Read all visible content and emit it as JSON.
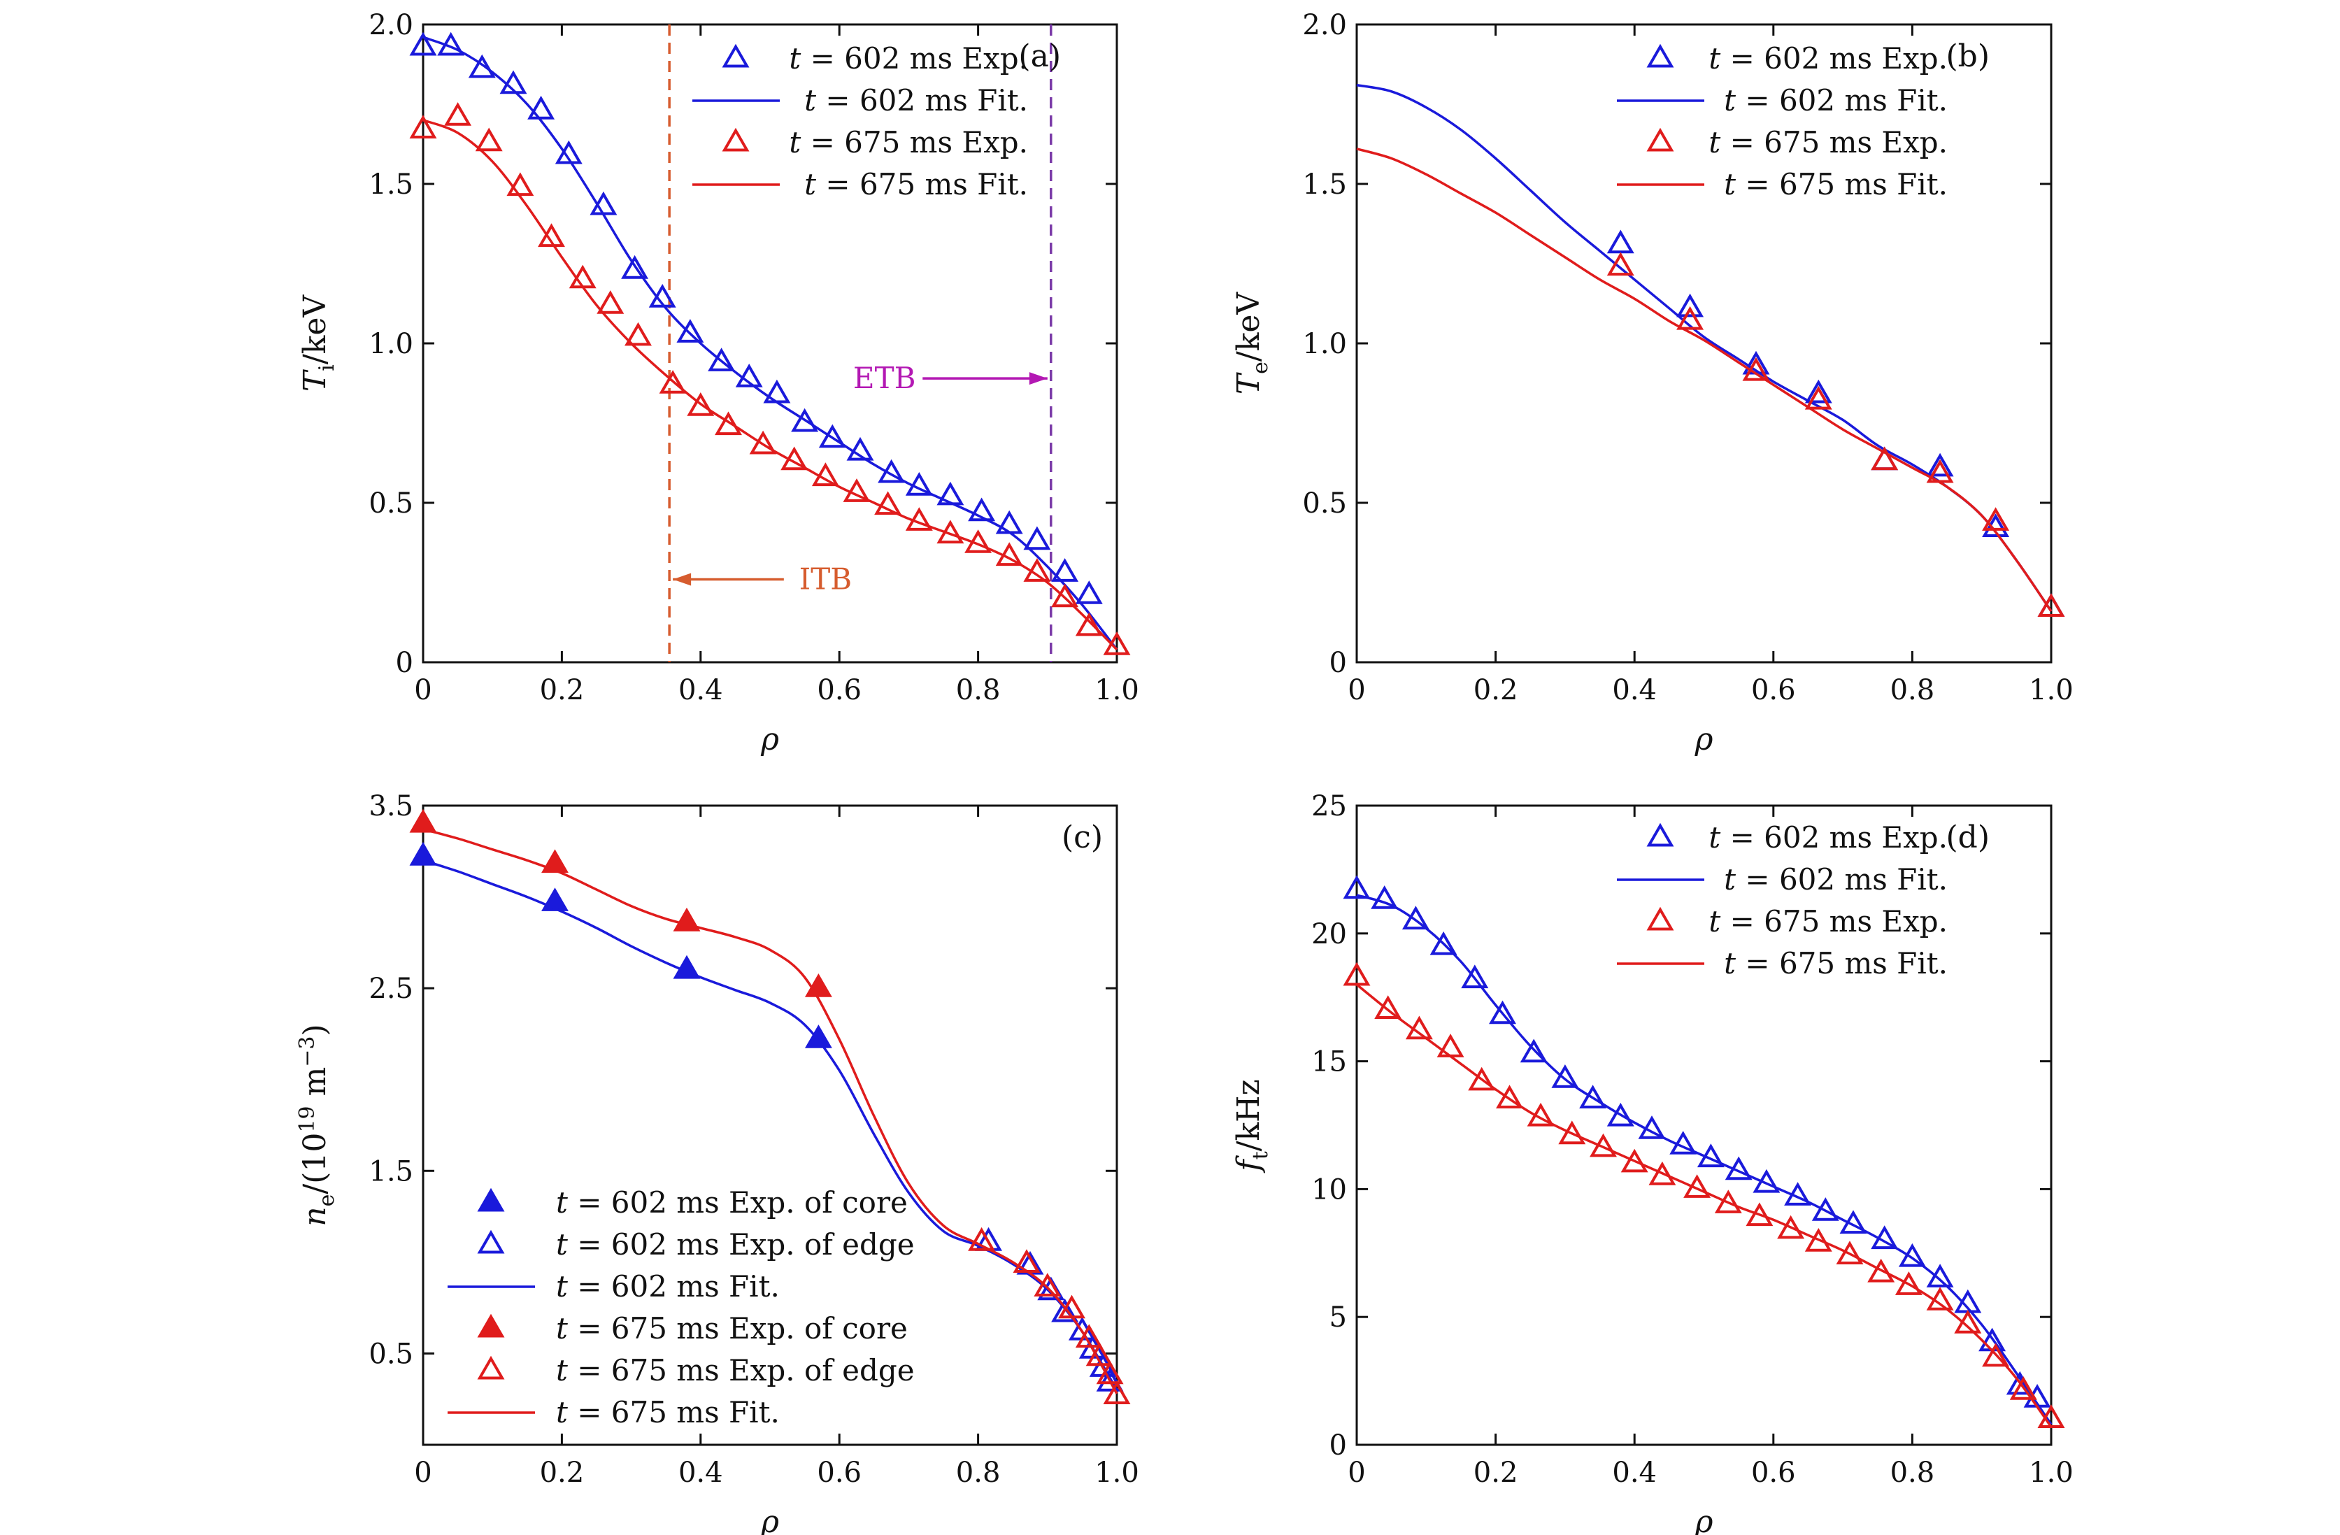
{
  "chart_data": [
    {
      "panel": "(a)",
      "type": "line",
      "xlabel": "ρ",
      "ylabel_main": "T",
      "ylabel_sub": "i",
      "ylabel_rest": "/keV",
      "xlim": [
        0,
        1.0
      ],
      "ylim": [
        0,
        2.0
      ],
      "xticks": [
        0,
        0.2,
        0.4,
        0.6,
        0.8,
        1.0
      ],
      "xtick_labels": [
        "0",
        "0.2",
        "0.4",
        "0.6",
        "0.8",
        "1.0"
      ],
      "yticks": [
        0,
        0.5,
        1.0,
        1.5,
        2.0
      ],
      "ytick_labels": [
        "0",
        "0.5",
        "1.0",
        "1.5",
        "2.0"
      ],
      "legend_position": "top-right",
      "series": [
        {
          "name": "t = 602 ms Exp.",
          "legend": [
            "t",
            " = 602 ms Exp."
          ],
          "kind": "open",
          "color": "#1a1adb",
          "x": [
            0,
            0.04,
            0.085,
            0.13,
            0.17,
            0.21,
            0.26,
            0.305,
            0.345,
            0.385,
            0.43,
            0.47,
            0.51,
            0.55,
            0.59,
            0.63,
            0.675,
            0.715,
            0.76,
            0.805,
            0.845,
            0.885,
            0.925,
            0.96
          ],
          "y": [
            1.93,
            1.93,
            1.86,
            1.81,
            1.73,
            1.59,
            1.43,
            1.23,
            1.14,
            1.03,
            0.94,
            0.89,
            0.84,
            0.75,
            0.7,
            0.66,
            0.59,
            0.55,
            0.52,
            0.47,
            0.43,
            0.38,
            0.28,
            0.21
          ]
        },
        {
          "name": "t = 602 ms Fit.",
          "legend": [
            "t",
            " = 602 ms Fit."
          ],
          "kind": "line",
          "color": "#1a1adb",
          "x": [
            0,
            0.05,
            0.1,
            0.15,
            0.2,
            0.25,
            0.3,
            0.35,
            0.4,
            0.45,
            0.5,
            0.55,
            0.6,
            0.65,
            0.7,
            0.75,
            0.8,
            0.85,
            0.9,
            0.95,
            1.0
          ],
          "y": [
            1.96,
            1.92,
            1.85,
            1.75,
            1.61,
            1.44,
            1.26,
            1.11,
            1.0,
            0.91,
            0.83,
            0.76,
            0.69,
            0.62,
            0.56,
            0.51,
            0.46,
            0.4,
            0.3,
            0.18,
            0.04
          ]
        },
        {
          "name": "t = 675 ms Exp.",
          "legend": [
            "t",
            " = 675 ms Exp."
          ],
          "kind": "open",
          "color": "#e01c1c",
          "x": [
            0,
            0.05,
            0.095,
            0.14,
            0.185,
            0.23,
            0.27,
            0.31,
            0.36,
            0.4,
            0.44,
            0.49,
            0.535,
            0.58,
            0.625,
            0.67,
            0.715,
            0.76,
            0.8,
            0.845,
            0.885,
            0.925,
            0.96,
            1.0
          ],
          "y": [
            1.67,
            1.71,
            1.63,
            1.49,
            1.33,
            1.2,
            1.12,
            1.02,
            0.87,
            0.8,
            0.74,
            0.68,
            0.63,
            0.58,
            0.53,
            0.49,
            0.44,
            0.4,
            0.37,
            0.33,
            0.28,
            0.2,
            0.11,
            0.05
          ]
        },
        {
          "name": "t = 675 ms Fit.",
          "legend": [
            "t",
            " = 675 ms Fit."
          ],
          "kind": "line",
          "color": "#e01c1c",
          "x": [
            0,
            0.05,
            0.1,
            0.15,
            0.2,
            0.25,
            0.3,
            0.35,
            0.4,
            0.45,
            0.5,
            0.55,
            0.6,
            0.65,
            0.7,
            0.75,
            0.8,
            0.85,
            0.9,
            0.95,
            1.0
          ],
          "y": [
            1.7,
            1.66,
            1.57,
            1.43,
            1.27,
            1.12,
            1.0,
            0.9,
            0.81,
            0.74,
            0.67,
            0.61,
            0.55,
            0.5,
            0.45,
            0.41,
            0.37,
            0.32,
            0.25,
            0.15,
            0.04
          ]
        }
      ],
      "vlines": [
        {
          "x": 0.355,
          "color": "#d65c2e",
          "label": "ITB"
        },
        {
          "x": 0.905,
          "color": "#7a3aa8",
          "label": "ETB"
        }
      ],
      "annotations": [
        {
          "text": "ITB",
          "color": "#d65c2e",
          "text_x": 0.58,
          "text_y": 0.26,
          "arrow_from": [
            0.52,
            0.26
          ],
          "arrow_to": [
            0.36,
            0.26
          ]
        },
        {
          "text": "ETB",
          "color": "#b318b3",
          "text_x": 0.665,
          "text_y": 0.89,
          "arrow_from": [
            0.72,
            0.89
          ],
          "arrow_to": [
            0.9,
            0.89
          ]
        }
      ]
    },
    {
      "panel": "(b)",
      "type": "line",
      "xlabel": "ρ",
      "ylabel_main": "T",
      "ylabel_sub": "e",
      "ylabel_rest": "/keV",
      "xlim": [
        0,
        1.0
      ],
      "ylim": [
        0,
        2.0
      ],
      "xticks": [
        0,
        0.2,
        0.4,
        0.6,
        0.8,
        1.0
      ],
      "xtick_labels": [
        "0",
        "0.2",
        "0.4",
        "0.6",
        "0.8",
        "1.0"
      ],
      "yticks": [
        0,
        0.5,
        1.0,
        1.5,
        2.0
      ],
      "ytick_labels": [
        "0",
        "0.5",
        "1.0",
        "1.5",
        "2.0"
      ],
      "legend_position": "top-right",
      "series": [
        {
          "name": "t = 602 ms Exp.",
          "legend": [
            "t",
            " = 602 ms Exp."
          ],
          "kind": "open",
          "color": "#1a1adb",
          "x": [
            0.38,
            0.48,
            0.575,
            0.665,
            0.76,
            0.84,
            0.92,
            1.0
          ],
          "y": [
            1.31,
            1.11,
            0.93,
            0.84,
            0.63,
            0.61,
            0.42,
            0.17
          ]
        },
        {
          "name": "t = 602 ms Fit.",
          "legend": [
            "t",
            " = 602 ms Fit."
          ],
          "kind": "line",
          "color": "#1a1adb",
          "x": [
            0,
            0.05,
            0.1,
            0.15,
            0.2,
            0.25,
            0.3,
            0.35,
            0.4,
            0.45,
            0.5,
            0.55,
            0.6,
            0.65,
            0.7,
            0.75,
            0.8,
            0.85,
            0.9,
            0.95,
            1.0
          ],
          "y": [
            1.81,
            1.79,
            1.74,
            1.67,
            1.58,
            1.48,
            1.38,
            1.29,
            1.2,
            1.11,
            1.02,
            0.95,
            0.88,
            0.82,
            0.76,
            0.68,
            0.62,
            0.55,
            0.46,
            0.32,
            0.16
          ]
        },
        {
          "name": "t = 675 ms Exp.",
          "legend": [
            "t",
            " = 675 ms Exp."
          ],
          "kind": "open",
          "color": "#e01c1c",
          "x": [
            0.38,
            0.48,
            0.575,
            0.665,
            0.76,
            0.84,
            0.92,
            1.0
          ],
          "y": [
            1.24,
            1.07,
            0.91,
            0.82,
            0.63,
            0.59,
            0.44,
            0.17
          ]
        },
        {
          "name": "t = 675 ms Fit.",
          "legend": [
            "t",
            " = 675 ms Fit."
          ],
          "kind": "line",
          "color": "#e01c1c",
          "x": [
            0,
            0.05,
            0.1,
            0.15,
            0.2,
            0.25,
            0.3,
            0.35,
            0.4,
            0.45,
            0.5,
            0.55,
            0.6,
            0.65,
            0.7,
            0.75,
            0.8,
            0.85,
            0.9,
            0.95,
            1.0
          ],
          "y": [
            1.61,
            1.58,
            1.53,
            1.47,
            1.41,
            1.34,
            1.27,
            1.2,
            1.14,
            1.07,
            1.01,
            0.94,
            0.87,
            0.8,
            0.73,
            0.67,
            0.61,
            0.55,
            0.46,
            0.32,
            0.16
          ]
        }
      ]
    },
    {
      "panel": "(c)",
      "type": "line",
      "xlabel": "ρ",
      "ylabel_main": "n",
      "ylabel_sub": "e",
      "ylabel_rest": "/(10",
      "ylabel_sup": "19",
      "ylabel_tail": " m",
      "ylabel_sup2": "−3",
      "ylabel_end": ")",
      "xlim": [
        0,
        1.0
      ],
      "ylim": [
        0,
        3.5
      ],
      "xticks": [
        0,
        0.2,
        0.4,
        0.6,
        0.8,
        1.0
      ],
      "xtick_labels": [
        "0",
        "0.2",
        "0.4",
        "0.6",
        "0.8",
        "1.0"
      ],
      "yticks": [
        0.5,
        1.5,
        2.5,
        3.5
      ],
      "ytick_labels": [
        "0.5",
        "1.5",
        "2.5",
        "3.5"
      ],
      "legend_position": "bottom-left",
      "series": [
        {
          "name": "t = 602 ms Exp. of core",
          "legend": [
            "t",
            " = 602 ms Exp. of core"
          ],
          "kind": "filled",
          "color": "#1a1adb",
          "x": [
            0,
            0.19,
            0.38,
            0.57
          ],
          "y": [
            3.22,
            2.97,
            2.6,
            2.22
          ]
        },
        {
          "name": "t = 602 ms Exp. of edge",
          "legend": [
            "t",
            " = 602 ms Exp. of edge"
          ],
          "kind": "open",
          "color": "#1a1adb",
          "x": [
            0.815,
            0.875,
            0.905,
            0.925,
            0.95,
            0.965,
            0.98,
            0.99
          ],
          "y": [
            1.11,
            0.98,
            0.84,
            0.72,
            0.62,
            0.52,
            0.42,
            0.34
          ]
        },
        {
          "name": "t = 602 ms Fit.",
          "legend": [
            "t",
            " = 602 ms Fit."
          ],
          "kind": "line",
          "color": "#1a1adb",
          "x": [
            0,
            0.05,
            0.1,
            0.15,
            0.2,
            0.25,
            0.3,
            0.35,
            0.4,
            0.45,
            0.5,
            0.55,
            0.6,
            0.65,
            0.7,
            0.75,
            0.8,
            0.85,
            0.9,
            0.95,
            1.0
          ],
          "y": [
            3.2,
            3.14,
            3.07,
            3.0,
            2.92,
            2.83,
            2.73,
            2.64,
            2.56,
            2.49,
            2.42,
            2.3,
            2.05,
            1.7,
            1.38,
            1.17,
            1.09,
            0.99,
            0.85,
            0.62,
            0.3
          ]
        },
        {
          "name": "t = 675 ms Exp. of core",
          "legend": [
            "t",
            " = 675 ms Exp. of core"
          ],
          "kind": "filled",
          "color": "#e01c1c",
          "x": [
            0,
            0.19,
            0.38,
            0.57
          ],
          "y": [
            3.4,
            3.18,
            2.86,
            2.5
          ]
        },
        {
          "name": "t = 675 ms Exp. of edge",
          "legend": [
            "t",
            " = 675 ms Exp. of edge"
          ],
          "kind": "open",
          "color": "#e01c1c",
          "x": [
            0.805,
            0.87,
            0.9,
            0.935,
            0.96,
            0.975,
            0.99,
            1.0
          ],
          "y": [
            1.11,
            0.99,
            0.86,
            0.74,
            0.58,
            0.48,
            0.38,
            0.27
          ]
        },
        {
          "name": "t = 675 ms Fit.",
          "legend": [
            "t",
            " = 675 ms Fit."
          ],
          "kind": "line",
          "color": "#e01c1c",
          "x": [
            0,
            0.05,
            0.1,
            0.15,
            0.2,
            0.25,
            0.3,
            0.35,
            0.4,
            0.45,
            0.5,
            0.55,
            0.6,
            0.65,
            0.7,
            0.75,
            0.8,
            0.85,
            0.9,
            0.95,
            1.0
          ],
          "y": [
            3.37,
            3.32,
            3.26,
            3.2,
            3.13,
            3.04,
            2.95,
            2.88,
            2.83,
            2.78,
            2.71,
            2.56,
            2.22,
            1.8,
            1.43,
            1.2,
            1.1,
            1.0,
            0.86,
            0.62,
            0.28
          ]
        }
      ]
    },
    {
      "panel": "(d)",
      "type": "line",
      "xlabel": "ρ",
      "ylabel_main": "f",
      "ylabel_sub": "t",
      "ylabel_rest": "/kHz",
      "xlim": [
        0,
        1.0
      ],
      "ylim": [
        0,
        25
      ],
      "xticks": [
        0,
        0.2,
        0.4,
        0.6,
        0.8,
        1.0
      ],
      "xtick_labels": [
        "0",
        "0.2",
        "0.4",
        "0.6",
        "0.8",
        "1.0"
      ],
      "yticks": [
        0,
        5,
        10,
        15,
        20,
        25
      ],
      "ytick_labels": [
        "0",
        "5",
        "10",
        "15",
        "20",
        "25"
      ],
      "legend_position": "top-right",
      "series": [
        {
          "name": "t = 602 ms Exp.",
          "legend": [
            "t",
            " = 602 ms Exp."
          ],
          "kind": "open",
          "color": "#1a1adb",
          "x": [
            0,
            0.04,
            0.085,
            0.125,
            0.17,
            0.21,
            0.255,
            0.3,
            0.34,
            0.38,
            0.425,
            0.47,
            0.51,
            0.55,
            0.59,
            0.635,
            0.675,
            0.715,
            0.76,
            0.8,
            0.84,
            0.88,
            0.915,
            0.955,
            0.98
          ],
          "y": [
            21.7,
            21.3,
            20.5,
            19.5,
            18.2,
            16.8,
            15.3,
            14.3,
            13.5,
            12.8,
            12.3,
            11.7,
            11.2,
            10.7,
            10.2,
            9.7,
            9.1,
            8.6,
            8.0,
            7.3,
            6.5,
            5.5,
            4.0,
            2.3,
            1.8
          ]
        },
        {
          "name": "t = 602 ms Fit.",
          "legend": [
            "t",
            " = 602 ms Fit."
          ],
          "kind": "line",
          "color": "#1a1adb",
          "x": [
            0,
            0.05,
            0.1,
            0.15,
            0.2,
            0.25,
            0.3,
            0.35,
            0.4,
            0.45,
            0.5,
            0.55,
            0.6,
            0.65,
            0.7,
            0.75,
            0.8,
            0.85,
            0.9,
            0.95,
            1.0
          ],
          "y": [
            21.5,
            21.1,
            20.2,
            18.9,
            17.2,
            15.6,
            14.3,
            13.4,
            12.6,
            11.9,
            11.3,
            10.7,
            10.1,
            9.5,
            8.8,
            8.1,
            7.3,
            6.2,
            4.7,
            2.8,
            0.8
          ]
        },
        {
          "name": "t = 675 ms Exp.",
          "legend": [
            "t",
            " = 675 ms Exp."
          ],
          "kind": "open",
          "color": "#e01c1c",
          "x": [
            0,
            0.045,
            0.09,
            0.135,
            0.18,
            0.22,
            0.265,
            0.31,
            0.355,
            0.4,
            0.44,
            0.49,
            0.535,
            0.58,
            0.625,
            0.665,
            0.71,
            0.755,
            0.795,
            0.84,
            0.88,
            0.92,
            0.96,
            1.0
          ],
          "y": [
            18.3,
            17.0,
            16.2,
            15.5,
            14.2,
            13.5,
            12.8,
            12.1,
            11.6,
            11.0,
            10.5,
            10.0,
            9.4,
            8.9,
            8.4,
            7.9,
            7.4,
            6.7,
            6.2,
            5.6,
            4.7,
            3.4,
            2.1,
            1.0
          ]
        },
        {
          "name": "t = 675 ms Fit.",
          "legend": [
            "t",
            " = 675 ms Fit."
          ],
          "kind": "line",
          "color": "#e01c1c",
          "x": [
            0,
            0.05,
            0.1,
            0.15,
            0.2,
            0.25,
            0.3,
            0.35,
            0.4,
            0.45,
            0.5,
            0.55,
            0.6,
            0.65,
            0.7,
            0.75,
            0.8,
            0.85,
            0.9,
            0.95,
            1.0
          ],
          "y": [
            18.0,
            16.9,
            15.9,
            14.9,
            13.9,
            13.0,
            12.3,
            11.7,
            11.1,
            10.5,
            9.9,
            9.3,
            8.8,
            8.2,
            7.6,
            6.9,
            6.2,
            5.3,
            4.1,
            2.6,
            0.7
          ]
        }
      ]
    }
  ]
}
